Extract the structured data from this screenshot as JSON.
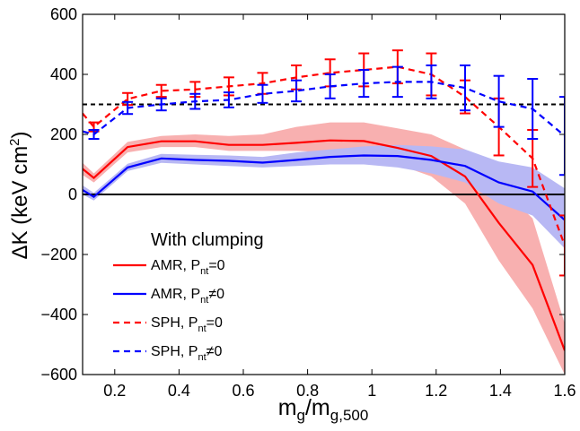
{
  "chart_data": {
    "type": "line",
    "xlabel": {
      "main": "m",
      "sub1": "g",
      "mid": "/m",
      "sub2": "g,500"
    },
    "ylabel": {
      "pre": "ΔK (keV cm",
      "sup": "2",
      "post": ")"
    },
    "xlim": [
      0.1,
      1.6
    ],
    "ylim": [
      -600,
      600
    ],
    "xticks": [
      0.2,
      0.4,
      0.6,
      0.8,
      1,
      1.2,
      1.4,
      1.6
    ],
    "xtick_labels": [
      "0.2",
      "0.4",
      "0.6",
      "0.8",
      "1",
      "1.2",
      "1.4",
      "1.6"
    ],
    "yticks": [
      -600,
      -400,
      -200,
      0,
      200,
      400,
      600
    ],
    "ytick_labels": [
      "−600",
      "−400",
      "−200",
      "0",
      "200",
      "400",
      "600"
    ],
    "reference_lines": [
      {
        "y": 300,
        "style": "dashed",
        "color": "#000000"
      },
      {
        "y": 0,
        "style": "solid",
        "color": "#000000"
      }
    ],
    "legend": {
      "title": "With clumping",
      "placement": "lower-left",
      "entries": [
        {
          "prefix": "AMR, P",
          "sub": "nt",
          "suffix": "=0",
          "color": "#ff0000",
          "dash": "solid"
        },
        {
          "prefix": "AMR, P",
          "sub": "nt",
          "suffix": "≠0",
          "color": "#0000ff",
          "dash": "solid"
        },
        {
          "prefix": "SPH, P",
          "sub": "nt",
          "suffix": "=0",
          "color": "#ff0000",
          "dash": "dashed"
        },
        {
          "prefix": "SPH, P",
          "sub": "nt",
          "suffix": "≠0",
          "color": "#0000ff",
          "dash": "dashed"
        }
      ]
    },
    "series": [
      {
        "kind": "band_line",
        "color": "#ff0000",
        "band_color": "#f8b0b0",
        "dash": "solid",
        "x": [
          0.1,
          0.135,
          0.24,
          0.345,
          0.45,
          0.555,
          0.66,
          0.765,
          0.87,
          0.975,
          1.08,
          1.185,
          1.29,
          1.395,
          1.5,
          1.6
        ],
        "y": [
          85,
          55,
          158,
          177,
          177,
          165,
          165,
          172,
          180,
          178,
          155,
          128,
          60,
          -95,
          -235,
          -520
        ],
        "band_low": [
          65,
          40,
          140,
          158,
          158,
          145,
          145,
          145,
          140,
          125,
          100,
          60,
          -30,
          -220,
          -380,
          -600
        ],
        "band_high": [
          105,
          70,
          175,
          195,
          200,
          195,
          200,
          225,
          240,
          240,
          220,
          200,
          150,
          30,
          -80,
          -430
        ]
      },
      {
        "kind": "band_line",
        "color": "#0000ff",
        "band_color": "#b8b8f4",
        "dash": "solid",
        "x": [
          0.1,
          0.135,
          0.24,
          0.345,
          0.45,
          0.555,
          0.66,
          0.765,
          0.87,
          0.975,
          1.08,
          1.185,
          1.29,
          1.395,
          1.5,
          1.6
        ],
        "y": [
          15,
          -8,
          90,
          120,
          115,
          112,
          106,
          115,
          125,
          130,
          128,
          115,
          95,
          40,
          10,
          -85
        ],
        "band_low": [
          0,
          -20,
          78,
          105,
          100,
          95,
          90,
          95,
          100,
          100,
          90,
          70,
          40,
          -30,
          -70,
          -180
        ],
        "band_high": [
          30,
          5,
          102,
          135,
          132,
          130,
          125,
          140,
          150,
          160,
          165,
          160,
          150,
          110,
          90,
          20
        ]
      },
      {
        "kind": "errorbar_line",
        "color": "#ff0000",
        "dash": "dashed",
        "x": [
          0.1,
          0.135,
          0.24,
          0.345,
          0.45,
          0.555,
          0.66,
          0.765,
          0.87,
          0.975,
          1.08,
          1.185,
          1.29,
          1.395,
          1.5,
          1.6
        ],
        "y": [
          270,
          225,
          318,
          345,
          350,
          360,
          370,
          390,
          405,
          415,
          425,
          400,
          325,
          225,
          120,
          -170
        ],
        "err": [
          0,
          15,
          20,
          20,
          25,
          30,
          35,
          40,
          45,
          55,
          55,
          70,
          55,
          95,
          95,
          100
        ]
      },
      {
        "kind": "errorbar_line",
        "color": "#0000ff",
        "dash": "dashed",
        "x": [
          0.1,
          0.135,
          0.24,
          0.345,
          0.45,
          0.555,
          0.66,
          0.765,
          0.87,
          0.975,
          1.08,
          1.185,
          1.29,
          1.395,
          1.5,
          1.6
        ],
        "y": [
          210,
          200,
          288,
          300,
          310,
          315,
          335,
          345,
          360,
          370,
          375,
          375,
          355,
          310,
          285,
          195
        ],
        "err": [
          0,
          15,
          20,
          20,
          25,
          25,
          30,
          35,
          40,
          45,
          50,
          55,
          75,
          85,
          100,
          130
        ]
      }
    ]
  }
}
